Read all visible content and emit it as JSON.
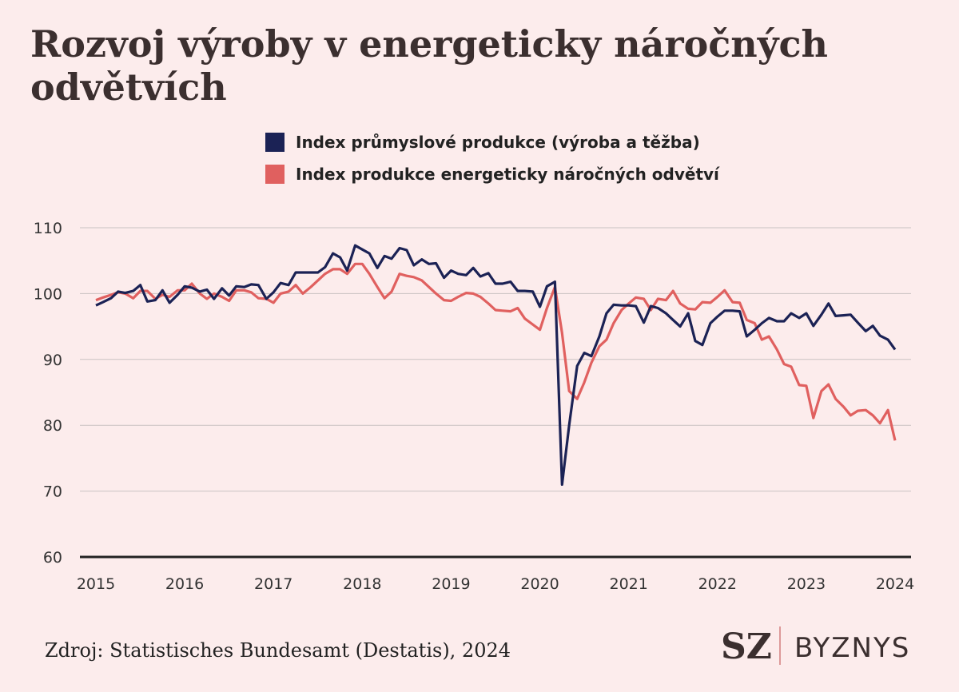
{
  "chart_data": {
    "type": "line",
    "title": "Rozvoj výroby v energeticky náročných odvětvích",
    "source": "Zdroj: Statistisches Bundesamt (Destatis), 2024",
    "logo": {
      "brand": "SZ",
      "section": "BYZNYS"
    },
    "x": [
      2015,
      2015.08,
      2015.17,
      2015.25,
      2015.33,
      2015.42,
      2015.5,
      2015.58,
      2015.67,
      2015.75,
      2015.83,
      2015.92,
      2016,
      2016.08,
      2016.17,
      2016.25,
      2016.33,
      2016.42,
      2016.5,
      2016.58,
      2016.67,
      2016.75,
      2016.83,
      2016.92,
      2017,
      2017.08,
      2017.17,
      2017.25,
      2017.33,
      2017.42,
      2017.5,
      2017.58,
      2017.67,
      2017.75,
      2017.83,
      2017.92,
      2018,
      2018.08,
      2018.17,
      2018.25,
      2018.33,
      2018.42,
      2018.5,
      2018.58,
      2018.67,
      2018.75,
      2018.83,
      2018.92,
      2019,
      2019.08,
      2019.17,
      2019.25,
      2019.33,
      2019.42,
      2019.5,
      2019.58,
      2019.67,
      2019.75,
      2019.83,
      2019.92,
      2020,
      2020.08,
      2020.17,
      2020.25,
      2020.33,
      2020.42,
      2020.5,
      2020.58,
      2020.67,
      2020.75,
      2020.83,
      2020.92,
      2021,
      2021.08,
      2021.17,
      2021.25,
      2021.33,
      2021.42,
      2021.5,
      2021.58,
      2021.67,
      2021.75,
      2021.83,
      2021.92,
      2022,
      2022.08,
      2022.17,
      2022.25,
      2022.33,
      2022.42,
      2022.5,
      2022.58,
      2022.67,
      2022.75,
      2022.83,
      2022.92,
      2023,
      2023.08,
      2023.17,
      2023.25,
      2023.33,
      2023.42,
      2023.5,
      2023.58,
      2023.67,
      2023.75,
      2023.83,
      2023.92,
      2024
    ],
    "series": [
      {
        "name": "Index průmyslové produkce (výroba a těžba)",
        "color": "#1b2255",
        "values": [
          98.2,
          98.7,
          99.3,
          100.3,
          100.1,
          100.4,
          101.3,
          98.8,
          99.0,
          100.5,
          98.6,
          99.8,
          101.1,
          100.9,
          100.3,
          100.6,
          99.2,
          100.8,
          99.7,
          101.1,
          101.0,
          101.4,
          101.3,
          99.2,
          100.2,
          101.6,
          101.3,
          103.2,
          103.2,
          103.2,
          103.2,
          104.0,
          106.1,
          105.5,
          103.5,
          107.3,
          106.7,
          106.1,
          103.9,
          105.7,
          105.3,
          106.9,
          106.6,
          104.3,
          105.2,
          104.5,
          104.6,
          102.4,
          103.5,
          103.0,
          102.8,
          103.9,
          102.6,
          103.1,
          101.5,
          101.5,
          101.8,
          100.4,
          100.4,
          100.3,
          98.0,
          101.1,
          101.8,
          71.0,
          80.0,
          89.0,
          91.0,
          90.5,
          93.5,
          97.0,
          98.3,
          98.2,
          98.2,
          98.1,
          95.6,
          98.1,
          97.8,
          97.0,
          96.0,
          95.0,
          97.0,
          92.8,
          92.2,
          95.5,
          96.5,
          97.4,
          97.4,
          97.3,
          93.5,
          94.5,
          95.5,
          96.3,
          95.8,
          95.8,
          97.0,
          96.3,
          97.0,
          95.1,
          96.8,
          98.5,
          96.6,
          96.7,
          96.8,
          95.6,
          94.3,
          95.1,
          93.6,
          93.0,
          91.5
        ]
      },
      {
        "name": "Index produkce energeticky náročných odvětví",
        "color": "#e0605f",
        "values": [
          99.0,
          99.4,
          99.8,
          100.2,
          100.0,
          99.3,
          100.4,
          100.4,
          99.2,
          99.8,
          99.5,
          100.5,
          100.5,
          101.5,
          100.0,
          99.2,
          100.0,
          99.5,
          98.9,
          100.5,
          100.5,
          100.2,
          99.3,
          99.2,
          98.6,
          100.0,
          100.3,
          101.3,
          100.0,
          101.0,
          102.0,
          103.0,
          103.7,
          103.7,
          103.0,
          104.5,
          104.5,
          103.0,
          101.0,
          99.3,
          100.3,
          103.0,
          102.7,
          102.5,
          102.0,
          101.0,
          100.0,
          99.0,
          98.9,
          99.5,
          100.1,
          100.0,
          99.5,
          98.5,
          97.5,
          97.4,
          97.3,
          97.8,
          96.2,
          95.3,
          94.5,
          97.8,
          101.0,
          94.0,
          85.2,
          84.0,
          86.5,
          89.5,
          92.0,
          93.0,
          95.5,
          97.5,
          98.5,
          99.4,
          99.2,
          97.5,
          99.2,
          99.0,
          100.4,
          98.5,
          97.7,
          97.6,
          98.7,
          98.6,
          99.5,
          100.5,
          98.7,
          98.6,
          96.0,
          95.5,
          93.0,
          93.5,
          91.5,
          89.3,
          88.9,
          86.1,
          86.0,
          81.1,
          85.2,
          86.2,
          84.0,
          82.8,
          81.5,
          82.2,
          82.3,
          81.5,
          80.3,
          82.3,
          77.7
        ]
      }
    ],
    "xlim": [
      2015,
      2024
    ],
    "xticks": [
      2015,
      2016,
      2017,
      2018,
      2019,
      2020,
      2021,
      2022,
      2023,
      2024
    ],
    "ylim": [
      60,
      110
    ],
    "yticks": [
      60,
      70,
      80,
      90,
      100,
      110
    ],
    "grid": true
  }
}
